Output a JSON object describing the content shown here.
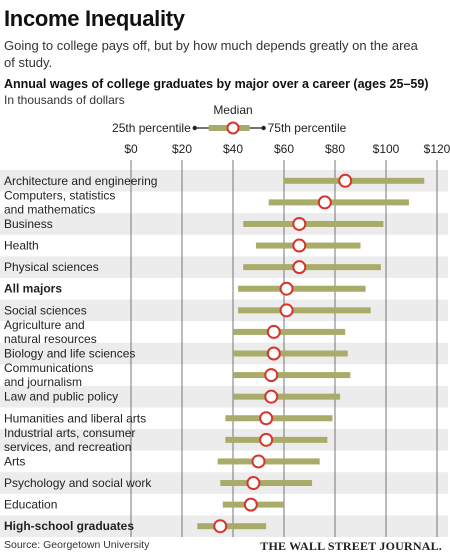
{
  "title": "Income Inequality",
  "subtitle": "Going to college pays off, but by how much depends greatly on the area of study.",
  "source": "Source: Georgetown University",
  "credit": "THE WALL STREET JOURNAL.",
  "colors": {
    "range_bar": "#a9ab69",
    "median_marker_stroke": "#d9342b",
    "median_marker_fill": "#ffffff",
    "row_stripe": "#ececec",
    "gridline": "#555555"
  },
  "chart_data": {
    "type": "range",
    "title": "Annual wages of college graduates by major over a career (ages 25–59)",
    "subtitle": "In thousands of dollars",
    "legend": {
      "median": "Median",
      "p25": "25th percentile",
      "p75": "75th percentile"
    },
    "x_ticks": [
      0,
      20,
      40,
      60,
      80,
      100,
      120
    ],
    "x_tick_labels": [
      "$0",
      "$20",
      "$40",
      "$60",
      "$80",
      "$100",
      "$120"
    ],
    "xlim": [
      0,
      120
    ],
    "grid": true,
    "categories": [
      {
        "label": [
          "Architecture and engineering"
        ],
        "p25": 60,
        "median": 84,
        "p75": 115,
        "bold": false
      },
      {
        "label": [
          "Computers, statistics",
          "and mathematics"
        ],
        "p25": 54,
        "median": 76,
        "p75": 109,
        "bold": false
      },
      {
        "label": [
          "Business"
        ],
        "p25": 44,
        "median": 66,
        "p75": 99,
        "bold": false
      },
      {
        "label": [
          "Health"
        ],
        "p25": 49,
        "median": 66,
        "p75": 90,
        "bold": false
      },
      {
        "label": [
          "Physical sciences"
        ],
        "p25": 44,
        "median": 66,
        "p75": 98,
        "bold": false
      },
      {
        "label": [
          "All majors"
        ],
        "p25": 42,
        "median": 61,
        "p75": 92,
        "bold": true
      },
      {
        "label": [
          "Social sciences"
        ],
        "p25": 42,
        "median": 61,
        "p75": 94,
        "bold": false
      },
      {
        "label": [
          "Agriculture and",
          "natural resources"
        ],
        "p25": 40,
        "median": 56,
        "p75": 84,
        "bold": false
      },
      {
        "label": [
          "Biology and life sciences"
        ],
        "p25": 40,
        "median": 56,
        "p75": 85,
        "bold": false
      },
      {
        "label": [
          "Communications",
          "and journalism"
        ],
        "p25": 40,
        "median": 55,
        "p75": 86,
        "bold": false
      },
      {
        "label": [
          "Law and public policy"
        ],
        "p25": 40,
        "median": 55,
        "p75": 82,
        "bold": false
      },
      {
        "label": [
          "Humanities and liberal arts"
        ],
        "p25": 37,
        "median": 53,
        "p75": 79,
        "bold": false
      },
      {
        "label": [
          "Industrial arts, consumer",
          "services, and recreation"
        ],
        "p25": 37,
        "median": 53,
        "p75": 77,
        "bold": false
      },
      {
        "label": [
          "Arts"
        ],
        "p25": 34,
        "median": 50,
        "p75": 74,
        "bold": false
      },
      {
        "label": [
          "Psychology and social work"
        ],
        "p25": 35,
        "median": 48,
        "p75": 71,
        "bold": false
      },
      {
        "label": [
          "Education"
        ],
        "p25": 36,
        "median": 47,
        "p75": 60,
        "bold": false
      },
      {
        "label": [
          "High-school graduates"
        ],
        "p25": 26,
        "median": 35,
        "p75": 53,
        "bold": true
      }
    ]
  }
}
